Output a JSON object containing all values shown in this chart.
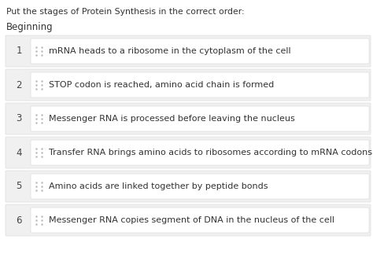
{
  "title": "Put the stages of Protein Synthesis in the correct order:",
  "subtitle": "Beginning",
  "background_color": "#ffffff",
  "outer_row_color": "#f0f0f0",
  "card_color": "#ffffff",
  "title_color": "#333333",
  "subtitle_color": "#333333",
  "number_color": "#444444",
  "text_color": "#333333",
  "dot_color": "#bbbbbb",
  "border_color": "#dddddd",
  "items": [
    {
      "number": "1",
      "text": "mRNA heads to a ribosome in the cytoplasm of the cell"
    },
    {
      "number": "2",
      "text": "STOP codon is reached, amino acid chain is formed"
    },
    {
      "number": "3",
      "text": "Messenger RNA is processed before leaving the nucleus"
    },
    {
      "number": "4",
      "text": "Transfer RNA brings amino acids to ribosomes according to mRNA codons"
    },
    {
      "number": "5",
      "text": "Amino acids are linked together by peptide bonds"
    },
    {
      "number": "6",
      "text": "Messenger RNA copies segment of DNA in the nucleus of the cell"
    }
  ],
  "title_fontsize": 7.8,
  "subtitle_fontsize": 8.5,
  "number_fontsize": 8.5,
  "text_fontsize": 8.0,
  "fig_width": 4.74,
  "fig_height": 3.23,
  "dpi": 100
}
